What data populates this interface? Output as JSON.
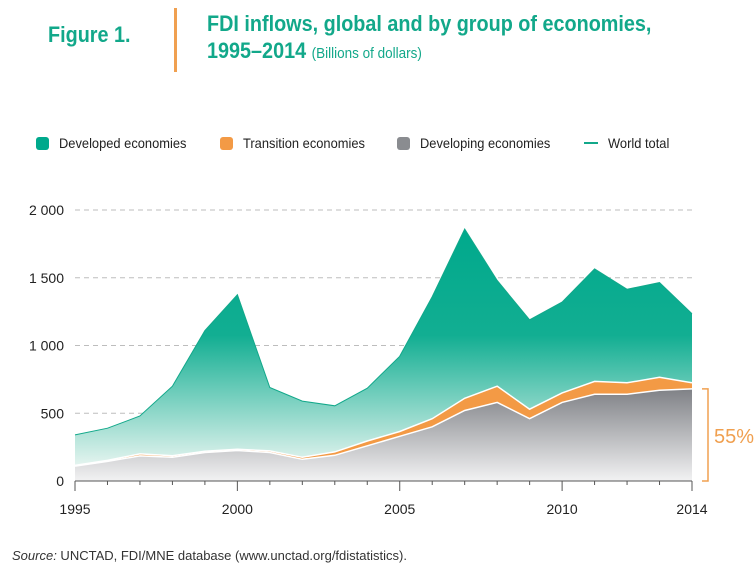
{
  "figure_label": "Figure 1.",
  "title_line1": "FDI inflows, global and by group of economies,",
  "title_line2": "1995–2014",
  "title_unit": "(Billions of dollars)",
  "colors": {
    "developed": "#00A98C",
    "transition": "#F39A45",
    "developing": "#8A8C90",
    "world": "#12A88A",
    "accent": "#F0A050"
  },
  "source_label": "Source:",
  "source_text": " UNCTAD, FDI/MNE database (www.unctad.org/fdistatistics).",
  "annotation": "55%",
  "chart_data": {
    "type": "area",
    "stacked": true,
    "title": "FDI inflows, global and by group of economies, 1995–2014",
    "ylabel": "Billions of dollars",
    "x": [
      1995,
      1996,
      1997,
      1998,
      1999,
      2000,
      2001,
      2002,
      2003,
      2004,
      2005,
      2006,
      2007,
      2008,
      2009,
      2010,
      2011,
      2012,
      2013,
      2014
    ],
    "xticks": [
      1995,
      2000,
      2005,
      2010,
      2014
    ],
    "xtick_labels": [
      "1995",
      "2000",
      "2005",
      "2010",
      "2014"
    ],
    "yticks": [
      0,
      500,
      1000,
      1500,
      2000
    ],
    "ytick_labels": [
      "0",
      "500",
      "1 000",
      "1 500",
      "2 000"
    ],
    "ylim": [
      0,
      2100
    ],
    "grid": true,
    "legend_position": "top",
    "series": [
      {
        "name": "Developing economies",
        "key": "developing",
        "values": [
          110,
          145,
          185,
          175,
          210,
          225,
          210,
          160,
          190,
          260,
          330,
          400,
          520,
          580,
          460,
          580,
          640,
          640,
          670,
          680
        ]
      },
      {
        "name": "Transition economies",
        "key": "transition",
        "values": [
          5,
          7,
          15,
          12,
          10,
          10,
          12,
          15,
          25,
          35,
          35,
          60,
          90,
          120,
          70,
          70,
          95,
          85,
          95,
          45
        ]
      },
      {
        "name": "Developed economies",
        "key": "developed",
        "values": [
          225,
          238,
          280,
          513,
          890,
          1140,
          468,
          415,
          340,
          390,
          555,
          900,
          1250,
          780,
          660,
          670,
          830,
          690,
          700,
          510
        ]
      }
    ],
    "world_total": {
      "name": "World total",
      "values": [
        340,
        390,
        480,
        700,
        1110,
        1375,
        690,
        590,
        555,
        685,
        920,
        1360,
        1860,
        1480,
        1190,
        1320,
        1565,
        1415,
        1465,
        1235
      ]
    },
    "annotation_text": "55%",
    "annotation_note": "bracket spanning developing economies share in 2014"
  }
}
